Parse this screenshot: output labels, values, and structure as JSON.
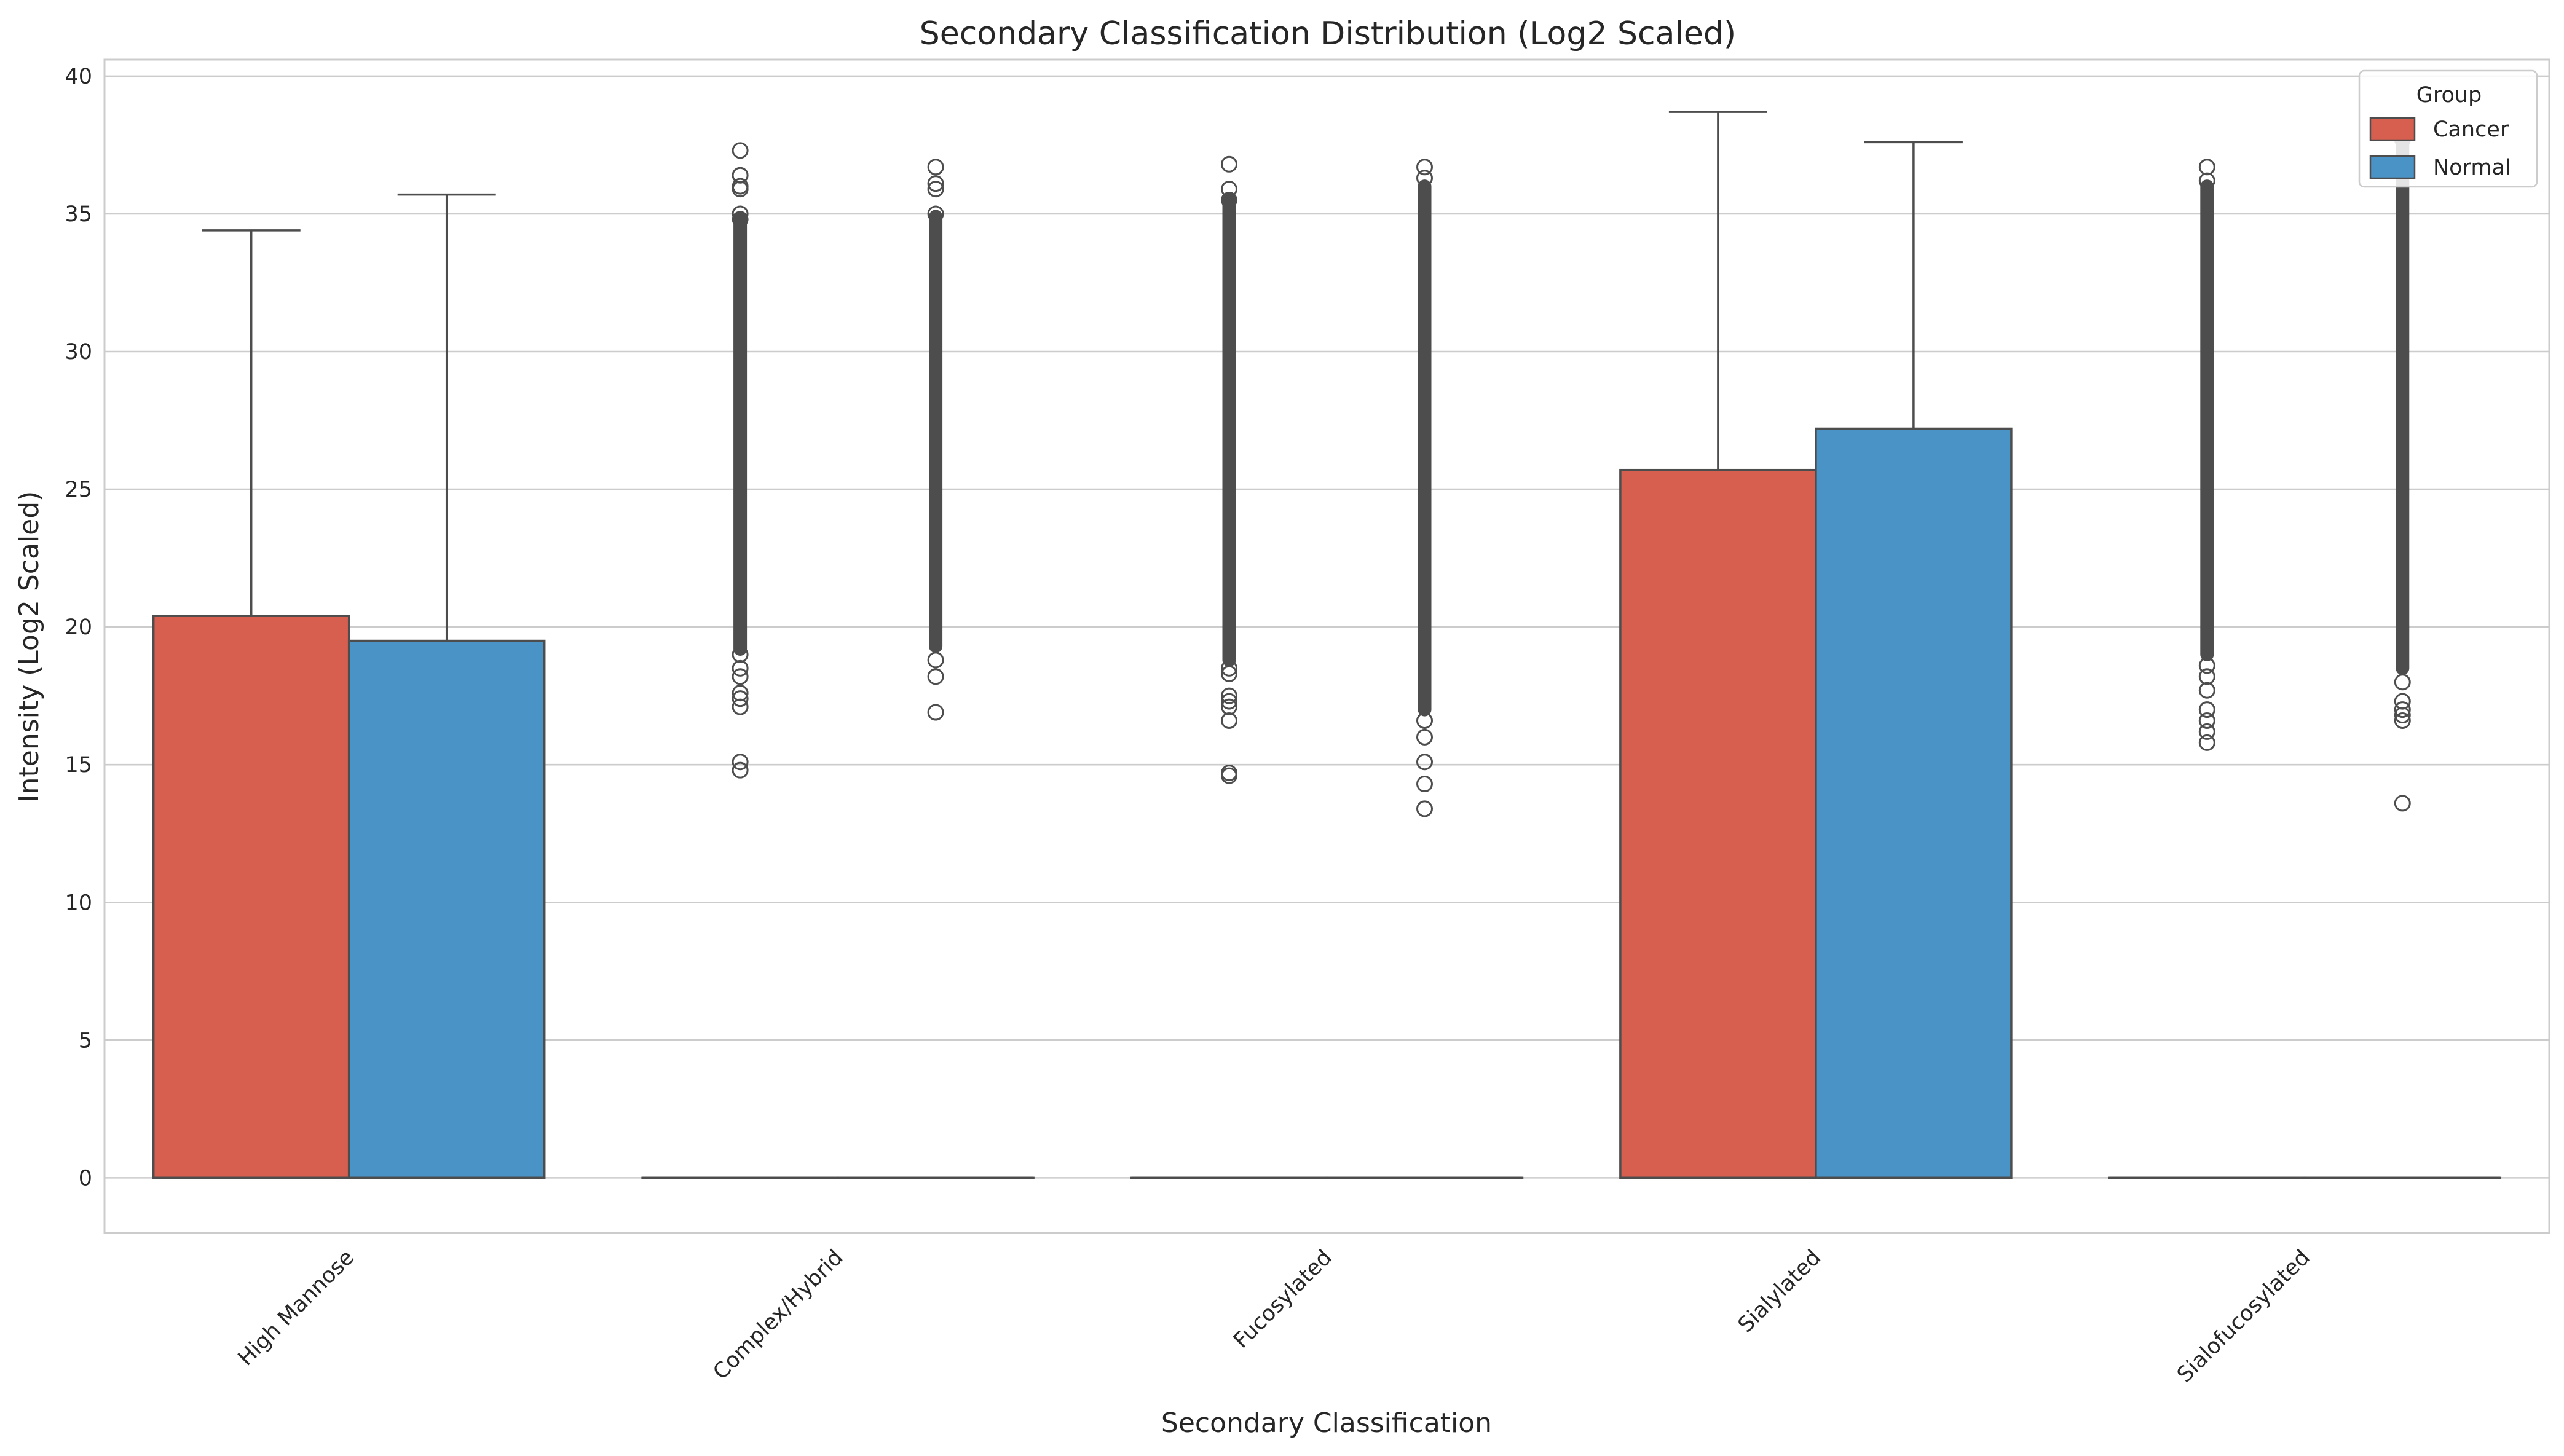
{
  "chart_data": {
    "type": "box",
    "title": "Secondary Classification Distribution (Log2 Scaled)",
    "xlabel": "Secondary Classification",
    "ylabel": "Intensity (Log2 Scaled)",
    "ylim": [
      -2,
      40.6
    ],
    "yticks": [
      0,
      5,
      10,
      15,
      20,
      25,
      30,
      35,
      40
    ],
    "grid": true,
    "legend": {
      "title": "Group",
      "position": "top-right"
    },
    "categories": [
      "High Mannose",
      "Complex/Hybrid",
      "Fucosylated",
      "Sialylated",
      "Sialofucosylated"
    ],
    "series": [
      {
        "name": "Cancer",
        "color": "#d65f50",
        "boxes": [
          {
            "q1": 0,
            "median": 0,
            "q3": 20.4,
            "whisker_low": 0,
            "whisker_high": 34.4,
            "outliers": []
          },
          {
            "q1": 0,
            "median": 0,
            "q3": 0,
            "whisker_low": 0,
            "whisker_high": 0,
            "outlier_band": [
              19.2,
              34.8
            ],
            "outliers": [
              37.3,
              36.4,
              36.0,
              35.9,
              35.0,
              34.8,
              19.0,
              18.5,
              18.2,
              17.6,
              17.4,
              17.1,
              15.1,
              14.8
            ]
          },
          {
            "q1": 0,
            "median": 0,
            "q3": 0,
            "whisker_low": 0,
            "whisker_high": 0,
            "outlier_band": [
              18.8,
              35.5
            ],
            "outliers": [
              36.8,
              35.9,
              35.5,
              18.5,
              18.3,
              17.5,
              17.3,
              17.1,
              16.6,
              14.7,
              14.6
            ]
          },
          {
            "q1": 0,
            "median": 0,
            "q3": 25.7,
            "whisker_low": 0,
            "whisker_high": 38.7,
            "outliers": []
          },
          {
            "q1": 0,
            "median": 0,
            "q3": 0,
            "whisker_low": 0,
            "whisker_high": 0,
            "outlier_band": [
              19.0,
              36.0
            ],
            "outliers": [
              36.7,
              36.2,
              18.6,
              18.2,
              17.7,
              17.0,
              16.6,
              16.2,
              15.8
            ]
          }
        ]
      },
      {
        "name": "Normal",
        "color": "#4a93c6",
        "boxes": [
          {
            "q1": 0,
            "median": 0,
            "q3": 19.5,
            "whisker_low": 0,
            "whisker_high": 35.7,
            "outliers": []
          },
          {
            "q1": 0,
            "median": 0,
            "q3": 0,
            "whisker_low": 0,
            "whisker_high": 0,
            "outlier_band": [
              19.3,
              34.9
            ],
            "outliers": [
              36.7,
              36.1,
              35.9,
              35.0,
              18.8,
              18.2,
              16.9
            ]
          },
          {
            "q1": 0,
            "median": 0,
            "q3": 0,
            "whisker_low": 0,
            "whisker_high": 0,
            "outlier_band": [
              17.0,
              36.0
            ],
            "outliers": [
              36.7,
              36.3,
              16.6,
              16.0,
              15.1,
              14.3,
              13.4
            ]
          },
          {
            "q1": 0,
            "median": 0,
            "q3": 27.2,
            "whisker_low": 0,
            "whisker_high": 37.6,
            "outliers": []
          },
          {
            "q1": 0,
            "median": 0,
            "q3": 0,
            "whisker_low": 0,
            "whisker_high": 0,
            "outlier_band": [
              18.5,
              37.7
            ],
            "outliers": [
              37.7,
              18.0,
              17.3,
              17.0,
              16.8,
              16.6,
              13.6
            ]
          }
        ]
      }
    ]
  }
}
